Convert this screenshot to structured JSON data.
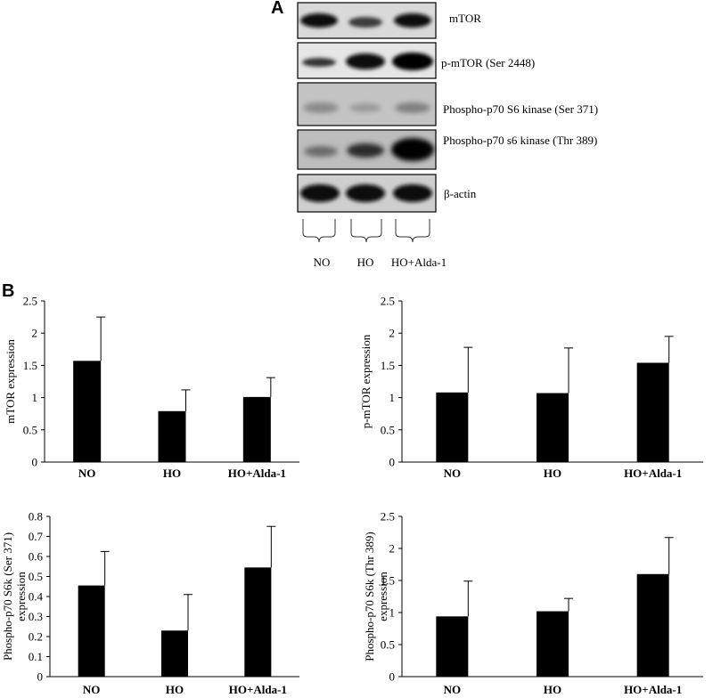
{
  "panels": {
    "a": "A",
    "b": "B"
  },
  "blot": {
    "labels": [
      "mTOR",
      "p-mTOR (Ser 2448)",
      "Phospho-p70 S6 kinase (Ser 371)",
      "Phospho-p70 s6 kinase (Thr 389)",
      "β-actin"
    ],
    "lanes": [
      "NO",
      "HO",
      "HO+Alda-1"
    ]
  },
  "chart_data": [
    {
      "type": "bar",
      "categories": [
        "NO",
        "HO",
        "HO+Alda-1"
      ],
      "values": [
        1.57,
        0.79,
        1.01
      ],
      "errors": [
        0.68,
        0.33,
        0.3
      ],
      "ylabel": "mTOR expression",
      "ylim": [
        0,
        2.5
      ],
      "yticks": [
        "0",
        "0.5",
        "1",
        "1.5",
        "2",
        "2.5"
      ]
    },
    {
      "type": "bar",
      "categories": [
        "NO",
        "HO",
        "HO+Alda-1"
      ],
      "values": [
        1.08,
        1.07,
        1.54
      ],
      "errors": [
        0.7,
        0.7,
        0.41
      ],
      "ylabel": "p-mTOR expression",
      "ylim": [
        0,
        2.5
      ],
      "yticks": [
        "0",
        "0.5",
        "1",
        "1.5",
        "2",
        "2.5"
      ]
    },
    {
      "type": "bar",
      "categories": [
        "NO",
        "HO",
        "HO+Alda-1"
      ],
      "values": [
        0.455,
        0.23,
        0.545
      ],
      "errors": [
        0.17,
        0.18,
        0.205
      ],
      "ylabel": [
        "Phospho-p70 S6k (Ser 371)",
        "expression"
      ],
      "ylim": [
        0,
        0.8
      ],
      "yticks": [
        "0",
        "0.1",
        "0.2",
        "0.3",
        "0.4",
        "0.5",
        "0.6",
        "0.7",
        "0.8"
      ]
    },
    {
      "type": "bar",
      "categories": [
        "NO",
        "HO",
        "HO+Alda-1"
      ],
      "values": [
        0.94,
        1.02,
        1.6
      ],
      "errors": [
        0.55,
        0.2,
        0.57
      ],
      "ylabel": [
        "Phospho-p70 S6k (Thr 389)",
        "expression"
      ],
      "ylim": [
        0,
        2.5
      ],
      "yticks": [
        "0",
        "0.5",
        "1",
        "1.5",
        "2",
        "2.5"
      ]
    }
  ]
}
